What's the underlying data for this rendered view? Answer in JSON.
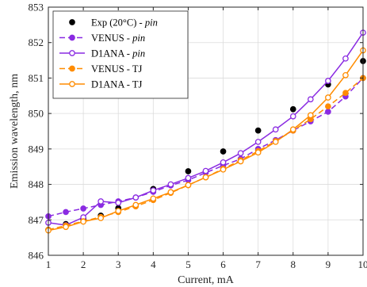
{
  "chart_data": {
    "type": "line",
    "xlabel": "Current, mA",
    "ylabel": "Emission wavelength, nm",
    "xlim": [
      1,
      10
    ],
    "ylim": [
      846,
      853
    ],
    "xticks": [
      1,
      2,
      3,
      4,
      5,
      6,
      7,
      8,
      9,
      10
    ],
    "yticks": [
      846,
      847,
      848,
      849,
      850,
      851,
      852,
      853
    ],
    "grid": true,
    "legend_position": "top-left",
    "series": [
      {
        "name": "Exp (20°C) - ",
        "name_suffix": "pin",
        "style": "markers",
        "marker": "filled-circle",
        "color": "#000000",
        "x": [
          1,
          1.5,
          2,
          2.5,
          3,
          4,
          5,
          6,
          7,
          8,
          9,
          10
        ],
        "y": [
          846.72,
          846.88,
          847.02,
          847.12,
          847.33,
          847.87,
          848.37,
          848.93,
          849.52,
          850.12,
          850.82,
          851.48
        ]
      },
      {
        "name": "VENUS - ",
        "name_suffix": "pin",
        "style": "dashed",
        "marker": "filled-circle",
        "color": "#8A2BE2",
        "x": [
          1,
          1.5,
          2,
          2.5,
          3,
          3.5,
          4,
          4.5,
          5,
          5.5,
          6,
          6.5,
          7,
          7.5,
          8,
          8.5,
          9,
          9.5,
          10
        ],
        "y": [
          847.1,
          847.22,
          847.32,
          847.42,
          847.52,
          847.63,
          847.79,
          847.97,
          848.12,
          848.33,
          848.53,
          848.72,
          849.0,
          849.25,
          849.52,
          849.78,
          850.05,
          850.48,
          851.0
        ]
      },
      {
        "name": "D1ANA - ",
        "name_suffix": "pin",
        "style": "solid",
        "marker": "open-circle",
        "color": "#8A2BE2",
        "x": [
          1,
          1.5,
          2,
          2.5,
          3,
          3.5,
          4,
          4.5,
          5,
          5.5,
          6,
          6.5,
          7,
          7.5,
          8,
          8.5,
          9,
          9.5,
          10
        ],
        "y": [
          846.92,
          846.85,
          847.07,
          847.52,
          847.48,
          847.63,
          847.83,
          848.0,
          848.18,
          848.38,
          848.62,
          848.88,
          849.2,
          849.55,
          849.92,
          850.4,
          850.92,
          851.55,
          852.28
        ]
      },
      {
        "name": "VENUS - TJ",
        "style": "dashed",
        "marker": "filled-circle",
        "color": "#FF8C00",
        "x": [
          1,
          1.5,
          2,
          2.5,
          3,
          3.5,
          4,
          4.5,
          5,
          5.5,
          6,
          6.5,
          7,
          7.5,
          8,
          8.5,
          9,
          9.5,
          10
        ],
        "y": [
          846.72,
          846.84,
          846.96,
          847.08,
          847.22,
          847.38,
          847.56,
          847.76,
          847.98,
          848.2,
          848.44,
          848.68,
          848.94,
          849.22,
          849.52,
          849.84,
          850.2,
          850.58,
          851.0
        ]
      },
      {
        "name": "D1ANA - TJ",
        "style": "solid",
        "marker": "open-circle",
        "color": "#FF8C00",
        "x": [
          1,
          1.5,
          2,
          2.5,
          3,
          3.5,
          4,
          4.5,
          5,
          5.5,
          6,
          6.5,
          7,
          7.5,
          8,
          8.5,
          9,
          9.5,
          10
        ],
        "y": [
          846.7,
          846.8,
          846.95,
          847.05,
          847.25,
          847.42,
          847.6,
          847.78,
          847.98,
          848.2,
          848.42,
          848.65,
          848.9,
          849.2,
          849.55,
          849.95,
          850.45,
          851.08,
          851.78
        ]
      }
    ]
  }
}
